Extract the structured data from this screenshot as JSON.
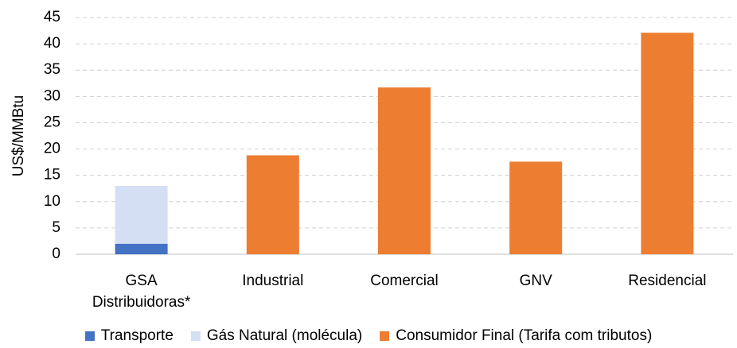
{
  "chart_data": {
    "type": "stacked_bar",
    "y_label": "US$/MMBtu",
    "categories": [
      "GSA Distribuidoras*",
      "Industrial",
      "Comercial",
      "GNV",
      "Residencial"
    ],
    "series": [
      {
        "name": "Transporte",
        "color": "#4472c4",
        "values": [
          2,
          null,
          null,
          null,
          null
        ]
      },
      {
        "name": "Gás Natural (molécula)",
        "color": "#d5dff4",
        "values": [
          11,
          null,
          null,
          null,
          null
        ]
      },
      {
        "name": "Consumidor Final (Tarifa com tributos)",
        "color": "#ed7d31",
        "values": [
          null,
          18.8,
          31.7,
          17.6,
          42.1
        ]
      }
    ],
    "ylim": [
      0,
      45
    ],
    "yticks": [
      0,
      5,
      10,
      15,
      20,
      25,
      30,
      35,
      40,
      45
    ],
    "grid": true,
    "legend": "bottom"
  }
}
